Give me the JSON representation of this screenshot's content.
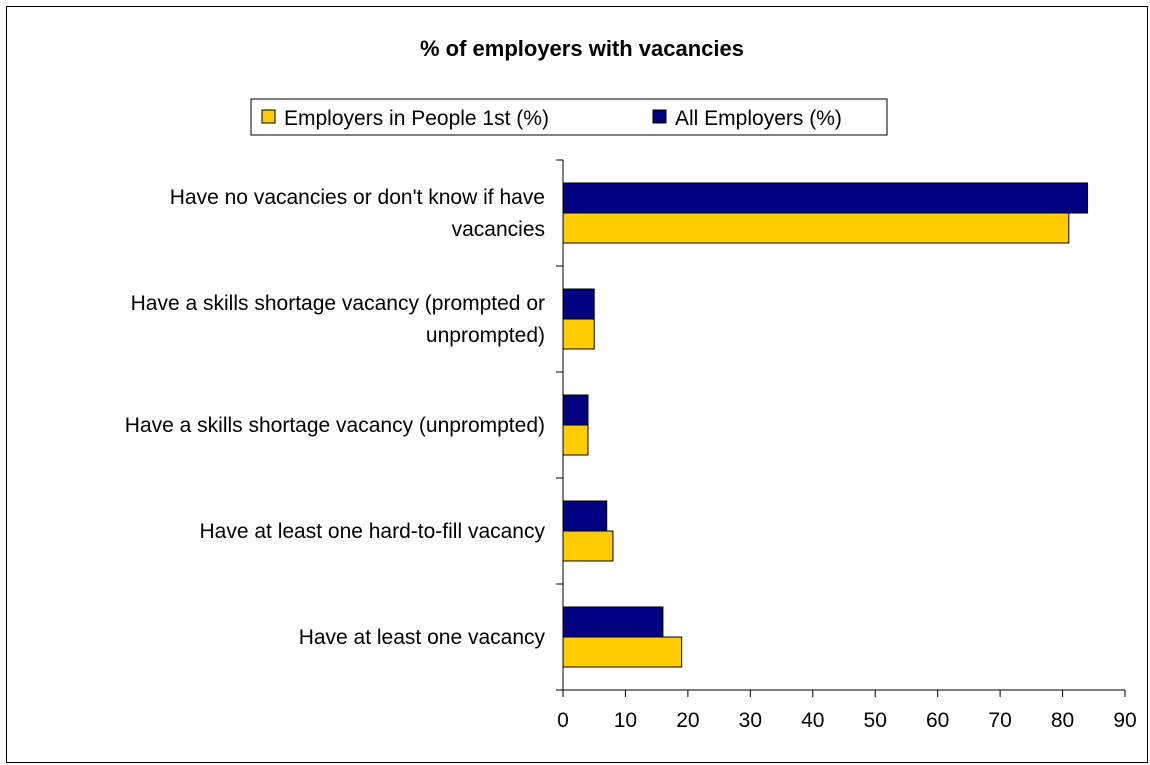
{
  "chart_data": {
    "type": "bar",
    "orientation": "horizontal",
    "title": "% of employers with vacancies",
    "categories": [
      [
        "Have no vacancies or don't know if have",
        "vacancies"
      ],
      [
        "Have a skills shortage vacancy (prompted or",
        "unprompted)"
      ],
      [
        "Have a skills shortage vacancy (unprompted)"
      ],
      [
        "Have at least one hard-to-fill vacancy"
      ],
      [
        "Have at least one vacancy"
      ]
    ],
    "series": [
      {
        "name": "Employers in People 1st (%)",
        "color": "#FFCC00",
        "values": [
          81,
          5,
          4,
          8,
          19
        ]
      },
      {
        "name": "All Employers (%)",
        "color": "#000080",
        "values": [
          84,
          5,
          4,
          7,
          16
        ]
      }
    ],
    "xlim": [
      0,
      90
    ],
    "xticks": [
      0,
      10,
      20,
      30,
      40,
      50,
      60,
      70,
      80,
      90
    ],
    "legend_position": "top",
    "grid": false
  }
}
